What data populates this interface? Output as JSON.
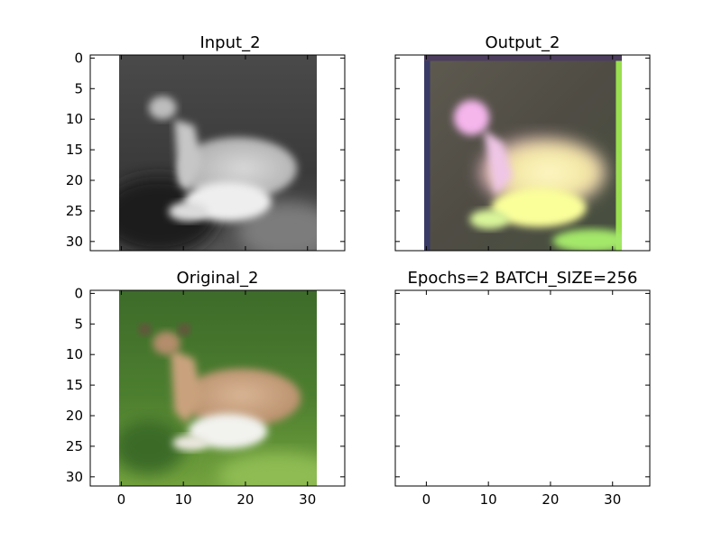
{
  "figure": {
    "background": "#ffffff"
  },
  "chart_data": [
    {
      "type": "image",
      "title": "Input_2",
      "content": "grayscale image of a deer lying on grass",
      "xlim": [
        -5,
        36
      ],
      "ylim": [
        31.5,
        -0.5
      ],
      "xticks": [
        0,
        10,
        20,
        30
      ],
      "yticks": [
        0,
        5,
        10,
        15,
        20,
        25,
        30
      ],
      "show_xtick_labels": false,
      "show_ytick_labels": true,
      "image_extent": [
        -0.5,
        31.5,
        31.5,
        -0.5
      ]
    },
    {
      "type": "image",
      "title": "Output_2",
      "content": "noisy reconstructed color image of a deer with magenta/yellow tints",
      "xlim": [
        -5,
        36
      ],
      "ylim": [
        31.5,
        -0.5
      ],
      "xticks": [
        0,
        10,
        20,
        30
      ],
      "yticks": [
        0,
        5,
        10,
        15,
        20,
        25,
        30
      ],
      "show_xtick_labels": false,
      "show_ytick_labels": false,
      "image_extent": [
        -0.5,
        31.5,
        31.5,
        -0.5
      ]
    },
    {
      "type": "image",
      "title": "Original_2",
      "content": "color image of a tan deer lying on green grass",
      "xlim": [
        -5,
        36
      ],
      "ylim": [
        31.5,
        -0.5
      ],
      "xticks": [
        0,
        10,
        20,
        30
      ],
      "yticks": [
        0,
        5,
        10,
        15,
        20,
        25,
        30
      ],
      "show_xtick_labels": true,
      "show_ytick_labels": true,
      "image_extent": [
        -0.5,
        31.5,
        31.5,
        -0.5
      ]
    },
    {
      "type": "empty",
      "title": "Epochs=2 BATCH_SIZE=256",
      "xlim": [
        -5,
        36
      ],
      "ylim": [
        31.5,
        -0.5
      ],
      "xticks": [
        0,
        10,
        20,
        30
      ],
      "yticks": [
        0,
        5,
        10,
        15,
        20,
        25,
        30
      ],
      "show_xtick_labels": true,
      "show_ytick_labels": false
    }
  ]
}
